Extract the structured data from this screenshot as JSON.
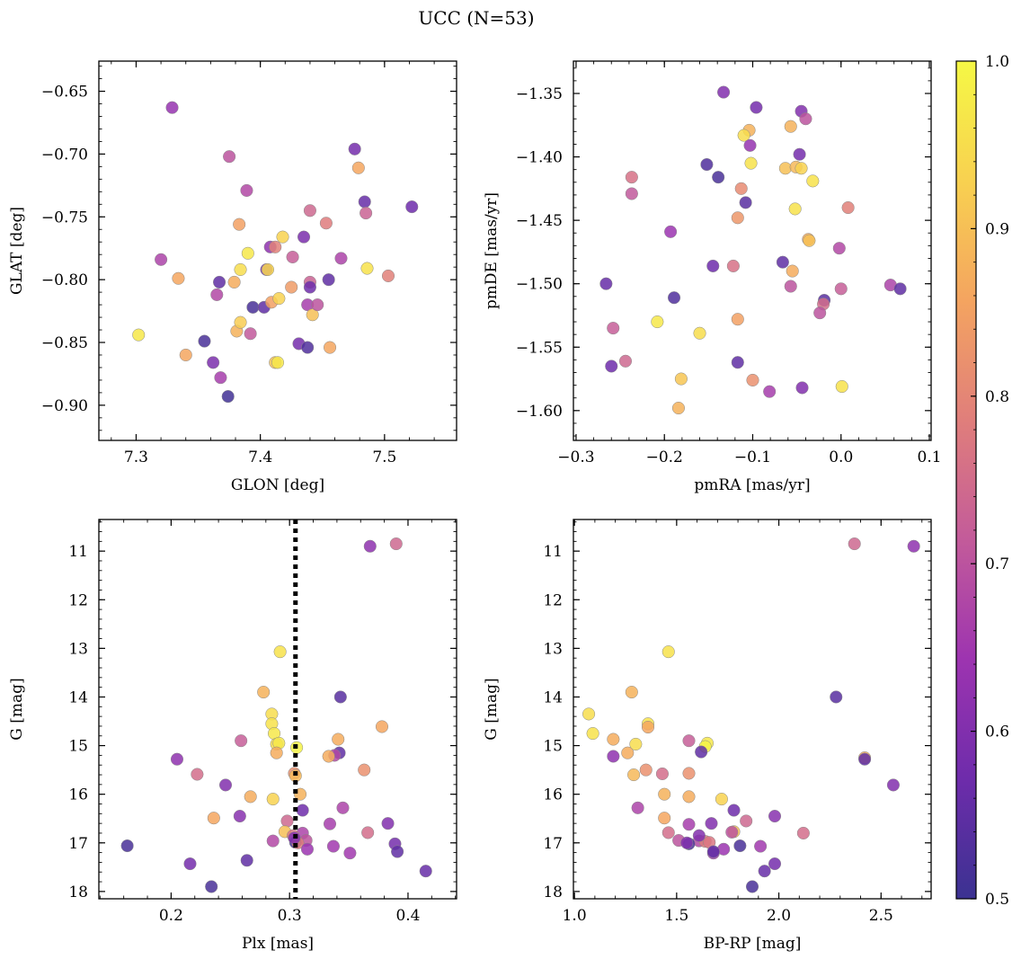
{
  "figure_title": "UCC (N=53)",
  "colorbar": {
    "range": [
      0.5,
      1.0
    ],
    "ticks": [
      "0.5",
      "0.6",
      "0.7",
      "0.8",
      "0.9",
      "1.0"
    ],
    "colormap": "plasma",
    "colors": [
      "#3b3291",
      "#6e2cab",
      "#9d34b0",
      "#c35b9a",
      "#e07e7b",
      "#f4a460",
      "#f8d150",
      "#f5f845"
    ]
  },
  "chart_data": [
    {
      "type": "scatter",
      "xlabel": "GLON [deg]",
      "ylabel": "GLAT [deg]",
      "xlim": [
        7.27,
        7.558
      ],
      "ylim": [
        -0.928,
        -0.626
      ],
      "xticks": [
        7.3,
        7.4,
        7.5
      ],
      "xtick_labels": [
        "7.3",
        "7.4",
        "7.5"
      ],
      "yticks": [
        -0.65,
        -0.7,
        -0.75,
        -0.8,
        -0.85,
        -0.9
      ],
      "ytick_labels": [
        "−0.65",
        "−0.70",
        "−0.75",
        "−0.80",
        "−0.85",
        "−0.90"
      ],
      "points": [
        [
          7.329,
          -0.663,
          0.63
        ],
        [
          7.302,
          -0.844,
          0.97
        ],
        [
          7.32,
          -0.784,
          0.67
        ],
        [
          7.334,
          -0.799,
          0.86
        ],
        [
          7.34,
          -0.86,
          0.86
        ],
        [
          7.355,
          -0.849,
          0.52
        ],
        [
          7.362,
          -0.866,
          0.59
        ],
        [
          7.365,
          -0.812,
          0.68
        ],
        [
          7.367,
          -0.802,
          0.55
        ],
        [
          7.368,
          -0.878,
          0.66
        ],
        [
          7.374,
          -0.893,
          0.51
        ],
        [
          7.375,
          -0.702,
          0.7
        ],
        [
          7.379,
          -0.802,
          0.87
        ],
        [
          7.381,
          -0.841,
          0.88
        ],
        [
          7.383,
          -0.756,
          0.85
        ],
        [
          7.384,
          -0.792,
          0.95
        ],
        [
          7.384,
          -0.834,
          0.92
        ],
        [
          7.389,
          -0.729,
          0.68
        ],
        [
          7.39,
          -0.779,
          0.97
        ],
        [
          7.392,
          -0.843,
          0.71
        ],
        [
          7.394,
          -0.822,
          0.52
        ],
        [
          7.403,
          -0.822,
          0.55
        ],
        [
          7.405,
          -0.792,
          0.58
        ],
        [
          7.406,
          -0.792,
          0.94
        ],
        [
          7.408,
          -0.774,
          0.62
        ],
        [
          7.409,
          -0.818,
          0.85
        ],
        [
          7.412,
          -0.774,
          0.79
        ],
        [
          7.412,
          -0.866,
          0.9
        ],
        [
          7.414,
          -0.866,
          0.97
        ],
        [
          7.415,
          -0.815,
          0.93
        ],
        [
          7.418,
          -0.766,
          0.93
        ],
        [
          7.425,
          -0.806,
          0.84
        ],
        [
          7.426,
          -0.782,
          0.72
        ],
        [
          7.431,
          -0.851,
          0.58
        ],
        [
          7.435,
          -0.766,
          0.59
        ],
        [
          7.438,
          -0.82,
          0.66
        ],
        [
          7.438,
          -0.854,
          0.53
        ],
        [
          7.44,
          -0.745,
          0.74
        ],
        [
          7.44,
          -0.802,
          0.73
        ],
        [
          7.44,
          -0.806,
          0.57
        ],
        [
          7.442,
          -0.828,
          0.9
        ],
        [
          7.446,
          -0.82,
          0.7
        ],
        [
          7.453,
          -0.755,
          0.78
        ],
        [
          7.455,
          -0.8,
          0.55
        ],
        [
          7.456,
          -0.854,
          0.86
        ],
        [
          7.465,
          -0.783,
          0.67
        ],
        [
          7.476,
          -0.696,
          0.58
        ],
        [
          7.479,
          -0.711,
          0.86
        ],
        [
          7.484,
          -0.738,
          0.56
        ],
        [
          7.485,
          -0.747,
          0.73
        ],
        [
          7.486,
          -0.791,
          0.96
        ],
        [
          7.503,
          -0.797,
          0.79
        ],
        [
          7.522,
          -0.742,
          0.57
        ]
      ]
    },
    {
      "type": "scatter",
      "xlabel": "pmRA [mas/yr]",
      "ylabel": "pmDE [mas/yr]",
      "xlim": [
        -0.303,
        0.102
      ],
      "ylim": [
        -1.6235,
        -1.3245
      ],
      "xticks": [
        -0.3,
        -0.2,
        -0.1,
        0.0,
        0.1
      ],
      "xtick_labels": [
        "−0.3",
        "−0.2",
        "−0.1",
        "0.0",
        "0.1"
      ],
      "yticks": [
        -1.35,
        -1.4,
        -1.45,
        -1.5,
        -1.55,
        -1.6
      ],
      "ytick_labels": [
        "−1.35",
        "−1.40",
        "−1.45",
        "−1.50",
        "−1.55",
        "−1.60"
      ],
      "points": [
        [
          -0.133,
          -1.349,
          0.6
        ],
        [
          -0.096,
          -1.361,
          0.58
        ],
        [
          -0.045,
          -1.364,
          0.6
        ],
        [
          -0.04,
          -1.37,
          0.7
        ],
        [
          -0.104,
          -1.379,
          0.88
        ],
        [
          -0.11,
          -1.383,
          0.95
        ],
        [
          -0.103,
          -1.391,
          0.63
        ],
        [
          -0.047,
          -1.398,
          0.58
        ],
        [
          -0.102,
          -1.405,
          0.96
        ],
        [
          -0.057,
          -1.376,
          0.88
        ],
        [
          -0.152,
          -1.406,
          0.53
        ],
        [
          -0.139,
          -1.416,
          0.52
        ],
        [
          -0.237,
          -1.416,
          0.76
        ],
        [
          -0.063,
          -1.409,
          0.9
        ],
        [
          -0.051,
          -1.408,
          0.89
        ],
        [
          -0.045,
          -1.409,
          0.93
        ],
        [
          -0.032,
          -1.419,
          0.96
        ],
        [
          -0.113,
          -1.425,
          0.81
        ],
        [
          -0.237,
          -1.429,
          0.71
        ],
        [
          -0.108,
          -1.436,
          0.54
        ],
        [
          -0.052,
          -1.441,
          0.96
        ],
        [
          0.008,
          -1.44,
          0.79
        ],
        [
          -0.117,
          -1.448,
          0.83
        ],
        [
          -0.193,
          -1.459,
          0.64
        ],
        [
          -0.037,
          -1.465,
          0.87
        ],
        [
          -0.036,
          -1.466,
          0.9
        ],
        [
          -0.002,
          -1.472,
          0.68
        ],
        [
          -0.066,
          -1.483,
          0.55
        ],
        [
          -0.145,
          -1.486,
          0.57
        ],
        [
          -0.122,
          -1.486,
          0.76
        ],
        [
          -0.055,
          -1.49,
          0.87
        ],
        [
          -0.266,
          -1.5,
          0.56
        ],
        [
          -0.057,
          -1.502,
          0.7
        ],
        [
          0.056,
          -1.501,
          0.67
        ],
        [
          0.067,
          -1.504,
          0.55
        ],
        [
          0.0,
          -1.504,
          0.72
        ],
        [
          -0.189,
          -1.511,
          0.53
        ],
        [
          -0.019,
          -1.513,
          0.54
        ],
        [
          -0.02,
          -1.516,
          0.75
        ],
        [
          -0.024,
          -1.523,
          0.7
        ],
        [
          -0.208,
          -1.53,
          0.97
        ],
        [
          -0.117,
          -1.528,
          0.85
        ],
        [
          -0.258,
          -1.535,
          0.72
        ],
        [
          -0.16,
          -1.539,
          0.95
        ],
        [
          -0.26,
          -1.565,
          0.57
        ],
        [
          -0.244,
          -1.561,
          0.74
        ],
        [
          -0.117,
          -1.562,
          0.55
        ],
        [
          -0.181,
          -1.575,
          0.91
        ],
        [
          -0.1,
          -1.576,
          0.82
        ],
        [
          -0.081,
          -1.585,
          0.66
        ],
        [
          -0.044,
          -1.582,
          0.6
        ],
        [
          0.001,
          -1.581,
          0.96
        ],
        [
          -0.184,
          -1.598,
          0.88
        ]
      ]
    },
    {
      "type": "scatter",
      "xlabel": "Plx [mas]",
      "ylabel": "G [mag]",
      "xlim": [
        0.139,
        0.441
      ],
      "ylim": [
        18.15,
        10.35
      ],
      "xticks": [
        0.2,
        0.3,
        0.4
      ],
      "xtick_labels": [
        "0.2",
        "0.3",
        "0.4"
      ],
      "yticks": [
        11,
        12,
        13,
        14,
        15,
        16,
        17,
        18
      ],
      "ytick_labels": [
        "11",
        "12",
        "13",
        "14",
        "15",
        "16",
        "17",
        "18"
      ],
      "vline": 0.305,
      "points": [
        [
          0.368,
          10.9,
          0.62
        ],
        [
          0.39,
          10.85,
          0.74
        ],
        [
          0.292,
          13.07,
          0.96
        ],
        [
          0.278,
          13.9,
          0.88
        ],
        [
          0.343,
          14.0,
          0.54
        ],
        [
          0.285,
          14.35,
          0.95
        ],
        [
          0.285,
          14.55,
          0.96
        ],
        [
          0.378,
          14.61,
          0.86
        ],
        [
          0.287,
          14.75,
          0.97
        ],
        [
          0.259,
          14.9,
          0.72
        ],
        [
          0.341,
          14.87,
          0.87
        ],
        [
          0.289,
          14.97,
          0.95
        ],
        [
          0.291,
          14.95,
          0.97
        ],
        [
          0.306,
          15.04,
          0.99
        ],
        [
          0.342,
          15.15,
          0.55
        ],
        [
          0.338,
          15.2,
          0.68
        ],
        [
          0.289,
          15.15,
          0.87
        ],
        [
          0.333,
          15.22,
          0.87
        ],
        [
          0.205,
          15.28,
          0.62
        ],
        [
          0.222,
          15.59,
          0.75
        ],
        [
          0.304,
          15.57,
          0.82
        ],
        [
          0.305,
          15.62,
          0.89
        ],
        [
          0.363,
          15.5,
          0.82
        ],
        [
          0.246,
          15.81,
          0.6
        ],
        [
          0.309,
          16.0,
          0.88
        ],
        [
          0.267,
          16.05,
          0.87
        ],
        [
          0.286,
          16.1,
          0.93
        ],
        [
          0.345,
          16.28,
          0.67
        ],
        [
          0.311,
          16.33,
          0.57
        ],
        [
          0.258,
          16.45,
          0.61
        ],
        [
          0.236,
          16.49,
          0.86
        ],
        [
          0.298,
          16.55,
          0.74
        ],
        [
          0.334,
          16.61,
          0.66
        ],
        [
          0.383,
          16.6,
          0.6
        ],
        [
          0.296,
          16.77,
          0.9
        ],
        [
          0.311,
          16.8,
          0.67
        ],
        [
          0.366,
          16.79,
          0.75
        ],
        [
          0.303,
          16.85,
          0.77
        ],
        [
          0.286,
          16.96,
          0.68
        ],
        [
          0.314,
          16.95,
          0.7
        ],
        [
          0.305,
          16.99,
          0.52
        ],
        [
          0.307,
          17.0,
          0.78
        ],
        [
          0.389,
          17.02,
          0.58
        ],
        [
          0.163,
          17.06,
          0.52
        ],
        [
          0.337,
          17.07,
          0.65
        ],
        [
          0.315,
          17.13,
          0.64
        ],
        [
          0.351,
          17.21,
          0.65
        ],
        [
          0.391,
          17.18,
          0.55
        ],
        [
          0.216,
          17.43,
          0.58
        ],
        [
          0.264,
          17.36,
          0.55
        ],
        [
          0.415,
          17.58,
          0.56
        ],
        [
          0.234,
          17.9,
          0.52
        ],
        [
          0.304,
          16.9,
          0.6
        ]
      ]
    },
    {
      "type": "scatter",
      "xlabel": "BP-RP [mag]",
      "ylabel": "G [mag]",
      "xlim": [
        0.995,
        2.745
      ],
      "ylim": [
        18.15,
        10.35
      ],
      "xticks": [
        1.0,
        1.5,
        2.0,
        2.5
      ],
      "xtick_labels": [
        "1.0",
        "1.5",
        "2.0",
        "2.5"
      ],
      "yticks": [
        11,
        12,
        13,
        14,
        15,
        16,
        17,
        18
      ],
      "ytick_labels": [
        "11",
        "12",
        "13",
        "14",
        "15",
        "16",
        "17",
        "18"
      ],
      "points": [
        [
          2.37,
          10.85,
          0.74
        ],
        [
          2.66,
          10.9,
          0.62
        ],
        [
          1.46,
          13.07,
          0.96
        ],
        [
          1.28,
          13.9,
          0.88
        ],
        [
          2.28,
          14.0,
          0.54
        ],
        [
          1.07,
          14.35,
          0.95
        ],
        [
          1.09,
          14.75,
          0.96
        ],
        [
          1.36,
          14.55,
          0.96
        ],
        [
          1.36,
          14.62,
          0.86
        ],
        [
          1.19,
          14.87,
          0.87
        ],
        [
          1.56,
          14.9,
          0.72
        ],
        [
          1.3,
          14.97,
          0.95
        ],
        [
          1.65,
          14.95,
          0.97
        ],
        [
          1.64,
          15.02,
          0.99
        ],
        [
          1.62,
          15.13,
          0.55
        ],
        [
          1.19,
          15.22,
          0.62
        ],
        [
          1.26,
          15.15,
          0.87
        ],
        [
          2.42,
          15.25,
          0.87
        ],
        [
          2.42,
          15.28,
          0.55
        ],
        [
          1.35,
          15.5,
          0.82
        ],
        [
          1.29,
          15.6,
          0.89
        ],
        [
          1.43,
          15.58,
          0.75
        ],
        [
          1.56,
          15.57,
          0.82
        ],
        [
          2.56,
          15.81,
          0.6
        ],
        [
          1.44,
          16.0,
          0.88
        ],
        [
          1.56,
          16.05,
          0.87
        ],
        [
          1.72,
          16.1,
          0.93
        ],
        [
          1.31,
          16.28,
          0.67
        ],
        [
          1.78,
          16.33,
          0.57
        ],
        [
          1.98,
          16.45,
          0.61
        ],
        [
          1.44,
          16.49,
          0.86
        ],
        [
          1.84,
          16.55,
          0.74
        ],
        [
          1.67,
          16.6,
          0.6
        ],
        [
          1.56,
          16.62,
          0.66
        ],
        [
          1.78,
          16.77,
          0.9
        ],
        [
          1.46,
          16.79,
          0.75
        ],
        [
          2.12,
          16.8,
          0.75
        ],
        [
          1.51,
          16.95,
          0.7
        ],
        [
          1.61,
          16.96,
          0.68
        ],
        [
          1.64,
          16.97,
          0.78
        ],
        [
          1.66,
          16.99,
          0.77
        ],
        [
          1.56,
          17.02,
          0.52
        ],
        [
          1.81,
          17.06,
          0.52
        ],
        [
          1.91,
          17.07,
          0.65
        ],
        [
          1.73,
          17.13,
          0.64
        ],
        [
          1.68,
          17.21,
          0.65
        ],
        [
          1.68,
          17.18,
          0.55
        ],
        [
          1.98,
          17.43,
          0.58
        ],
        [
          1.93,
          17.58,
          0.56
        ],
        [
          1.87,
          17.9,
          0.52
        ],
        [
          1.61,
          16.85,
          0.6
        ],
        [
          1.77,
          16.78,
          0.7
        ],
        [
          1.55,
          17.0,
          0.6
        ]
      ]
    }
  ]
}
